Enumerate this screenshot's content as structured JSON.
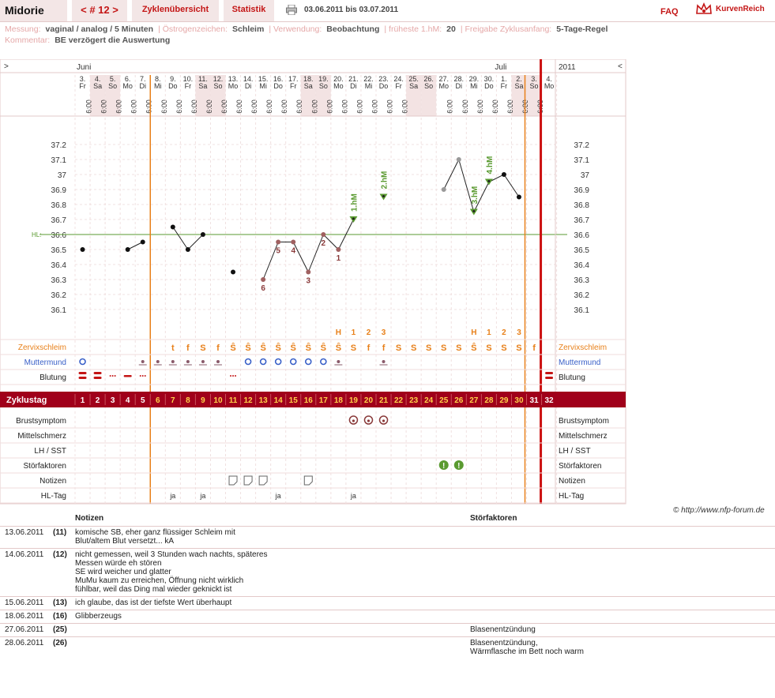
{
  "header": {
    "brand": "Midorie",
    "cycle_tab": "< # 12 >",
    "overview_tab": "Zyklenübersicht",
    "stats_tab": "Statistik",
    "date_range": "03.06.2011 bis 03.07.2011",
    "faq": "FAQ",
    "logo_text": "KurvenReich"
  },
  "info": {
    "messung_label": "Messung:",
    "messung_value": "vaginal / analog / 5 Minuten",
    "oestrogen_label": "Östrogenzeichen:",
    "oestrogen_value": "Schleim",
    "verwendung_label": "Verwendung:",
    "verwendung_value": "Beobachtung",
    "frueheste_label": "früheste 1.hM:",
    "frueheste_value": "20",
    "freigabe_label": "Freigabe Zyklusanfang:",
    "freigabe_value": "5-Tage-Regel",
    "kommentar_label": "Kommentar:",
    "kommentar_value": "BE verzögert die Auswertung"
  },
  "chart_data": {
    "type": "line",
    "month_left": "Juni",
    "month_right": "Juli",
    "year": "2011",
    "nav_left": ">",
    "nav_right": "<",
    "days": [
      {
        "d": "3.",
        "wd": "Fr"
      },
      {
        "d": "4.",
        "wd": "Sa"
      },
      {
        "d": "5.",
        "wd": "So"
      },
      {
        "d": "6.",
        "wd": "Mo"
      },
      {
        "d": "7.",
        "wd": "Di"
      },
      {
        "d": "8.",
        "wd": "Mi"
      },
      {
        "d": "9.",
        "wd": "Do"
      },
      {
        "d": "10.",
        "wd": "Fr"
      },
      {
        "d": "11.",
        "wd": "Sa"
      },
      {
        "d": "12.",
        "wd": "So"
      },
      {
        "d": "13.",
        "wd": "Mo"
      },
      {
        "d": "14.",
        "wd": "Di"
      },
      {
        "d": "15.",
        "wd": "Mi"
      },
      {
        "d": "16.",
        "wd": "Do"
      },
      {
        "d": "17.",
        "wd": "Fr"
      },
      {
        "d": "18.",
        "wd": "Sa"
      },
      {
        "d": "19.",
        "wd": "So"
      },
      {
        "d": "20.",
        "wd": "Mo"
      },
      {
        "d": "21.",
        "wd": "Di"
      },
      {
        "d": "22.",
        "wd": "Mi"
      },
      {
        "d": "23.",
        "wd": "Do"
      },
      {
        "d": "24.",
        "wd": "Fr"
      },
      {
        "d": "25.",
        "wd": "Sa"
      },
      {
        "d": "26.",
        "wd": "So"
      },
      {
        "d": "27.",
        "wd": "Mo"
      },
      {
        "d": "28.",
        "wd": "Di"
      },
      {
        "d": "29.",
        "wd": "Mi"
      },
      {
        "d": "30.",
        "wd": "Do"
      },
      {
        "d": "1.",
        "wd": "Fr"
      },
      {
        "d": "2.",
        "wd": "Sa"
      },
      {
        "d": "3.",
        "wd": "So"
      },
      {
        "d": "4.",
        "wd": "Mo"
      }
    ],
    "weekend_indices": [
      1,
      2,
      8,
      9,
      15,
      16,
      22,
      23,
      29,
      30
    ],
    "time_label": "6:00",
    "time_present": [
      1,
      1,
      1,
      1,
      1,
      1,
      1,
      1,
      1,
      1,
      1,
      1,
      1,
      1,
      1,
      1,
      1,
      1,
      1,
      1,
      1,
      1,
      0,
      0,
      1,
      1,
      1,
      1,
      1,
      1,
      1,
      0
    ],
    "y_ticks": [
      "37.2",
      "37.1",
      "37",
      "36.9",
      "36.8",
      "36.7",
      "36.6",
      "36.5",
      "36.4",
      "36.3",
      "36.2",
      "36.1"
    ],
    "ylim": [
      36.0,
      37.3
    ],
    "hl_label": "HL:",
    "hl_value": 36.6,
    "temperatures": [
      36.5,
      null,
      null,
      36.5,
      36.55,
      null,
      36.65,
      36.5,
      36.6,
      null,
      36.35,
      null,
      36.3,
      36.55,
      36.55,
      36.35,
      36.6,
      36.5,
      36.7,
      null,
      36.85,
      null,
      null,
      null,
      36.9,
      37.1,
      36.75,
      36.95,
      37.0,
      36.85,
      null,
      null
    ],
    "temp_status": [
      "n",
      "",
      "",
      "n",
      "n",
      "",
      "n",
      "n",
      "n",
      "",
      "n",
      "",
      "c",
      "c",
      "c",
      "c",
      "c",
      "c",
      "m",
      "",
      "m",
      "",
      "",
      "",
      "x",
      "x",
      "m",
      "m",
      "n",
      "n",
      "",
      ""
    ],
    "line_segments": [
      [
        3,
        4
      ],
      [
        6,
        7
      ],
      [
        7,
        8
      ],
      [
        12,
        13
      ],
      [
        13,
        14
      ],
      [
        14,
        15
      ],
      [
        15,
        16
      ],
      [
        16,
        17
      ],
      [
        17,
        18
      ],
      [
        24,
        25
      ],
      [
        25,
        26
      ],
      [
        26,
        27
      ],
      [
        27,
        28
      ],
      [
        28,
        29
      ]
    ],
    "count_labels": [
      {
        "i": 12,
        "text": "6",
        "pos": "below"
      },
      {
        "i": 13,
        "text": "5",
        "pos": "below"
      },
      {
        "i": 14,
        "text": "4",
        "pos": "below"
      },
      {
        "i": 15,
        "text": "3",
        "pos": "below"
      },
      {
        "i": 16,
        "text": "2",
        "pos": "below"
      },
      {
        "i": 17,
        "text": "1",
        "pos": "below"
      }
    ],
    "measure_labels": [
      {
        "i": 18,
        "text": "1.hM"
      },
      {
        "i": 20,
        "text": "2.hM"
      },
      {
        "i": 26,
        "text": "3.hM"
      },
      {
        "i": 27,
        "text": "4.hM"
      }
    ],
    "peak_row": [
      "",
      "",
      "",
      "",
      "",
      "",
      "",
      "",
      "",
      "",
      "",
      "",
      "",
      "",
      "",
      "",
      "",
      "H",
      "1",
      "2",
      "3",
      "",
      "",
      "",
      "",
      "",
      "H",
      "1",
      "2",
      "3",
      "",
      ""
    ],
    "zervix_label": "Zervixschleim",
    "zervix": [
      "",
      "",
      "",
      "",
      "",
      "",
      "t",
      "f",
      "S",
      "f",
      "Ŝ",
      "Ŝ",
      "Ŝ",
      "Ŝ",
      "Ŝ",
      "Ŝ",
      "Ŝ",
      "Ŝ",
      "S",
      "f",
      "f",
      "S",
      "S",
      "S",
      "S",
      "S",
      "Ŝ",
      "S",
      "S",
      "S",
      "f",
      ""
    ],
    "muttermund_label": "Muttermund",
    "muttermund": [
      "o",
      "",
      "",
      "",
      "c",
      "c",
      "c",
      "c",
      "c",
      "c",
      "",
      "o",
      "o",
      "o",
      "o",
      "o",
      "o",
      "c",
      "",
      "",
      "c",
      "",
      "",
      "",
      "",
      "",
      "",
      "",
      "",
      "",
      "",
      ""
    ],
    "blutung_label": "Blutung",
    "blutung": [
      "B",
      "B",
      "s",
      "b",
      "s",
      "",
      "",
      "",
      "",
      "",
      "s",
      "",
      "",
      "",
      "",
      "",
      "",
      "",
      "",
      "",
      "",
      "",
      "",
      "",
      "",
      "",
      "",
      "",
      "",
      "",
      "",
      "B"
    ],
    "zyklustag_label": "Zyklustag",
    "zyklustag": [
      "1",
      "2",
      "3",
      "4",
      "5",
      "6",
      "7",
      "8",
      "9",
      "10",
      "11",
      "12",
      "13",
      "14",
      "15",
      "16",
      "17",
      "18",
      "19",
      "20",
      "21",
      "22",
      "23",
      "24",
      "25",
      "26",
      "27",
      "28",
      "29",
      "30",
      "31",
      "32"
    ],
    "rows": [
      {
        "label": "Brustsymptom",
        "marks": {
          "18": "circle",
          "19": "circle",
          "20": "circle"
        }
      },
      {
        "label": "Mittelschmerz",
        "marks": {}
      },
      {
        "label": "LH / SST",
        "marks": {}
      },
      {
        "label": "Störfaktoren",
        "marks": {
          "24": "alert",
          "25": "alert"
        }
      },
      {
        "label": "Notizen",
        "marks": {
          "10": "note",
          "11": "note",
          "12": "note",
          "15": "note"
        }
      },
      {
        "label": "HL-Tag",
        "marks": {
          "6": "ja",
          "8": "ja",
          "13": "ja",
          "18": "ja"
        }
      }
    ],
    "colors": {
      "accent": "#a0001a",
      "orange": "#e8801a",
      "weekend": "#f3e3e3",
      "grid": "#f0e0e0",
      "hl": "#5a9a30",
      "green": "#5a9a30",
      "blue": "#3a60c8"
    }
  },
  "copyright": "© http://www.nfp-forum.de",
  "notes": {
    "col_notes": "Notizen",
    "col_stoer": "Störfaktoren",
    "rows": [
      {
        "date": "13.06.2011",
        "day": "(11)",
        "note": [
          "komische SB, eher ganz flüssiger Schleim mit",
          "Blut/altem Blut versetzt... kA"
        ],
        "stoer": []
      },
      {
        "date": "14.06.2011",
        "day": "(12)",
        "note": [
          "nicht gemessen, weil 3 Stunden wach nachts, späteres",
          "Messen würde eh stören",
          "SE wird weicher und glatter",
          "MuMu kaum zu erreichen, Öffnung nicht wirklich",
          "fühlbar, weil das Ding mal wieder geknickt ist"
        ],
        "stoer": []
      },
      {
        "date": "15.06.2011",
        "day": "(13)",
        "note": [
          "ich glaube, das ist der tiefste Wert überhaupt"
        ],
        "stoer": []
      },
      {
        "date": "18.06.2011",
        "day": "(16)",
        "note": [
          "Glibberzeugs"
        ],
        "stoer": []
      },
      {
        "date": "27.06.2011",
        "day": "(25)",
        "note": [],
        "stoer": [
          "Blasenentzündung"
        ]
      },
      {
        "date": "28.06.2011",
        "day": "(26)",
        "note": [],
        "stoer": [
          "Blasenentzündung,",
          "Wärmflasche im Bett noch warm"
        ]
      }
    ]
  }
}
